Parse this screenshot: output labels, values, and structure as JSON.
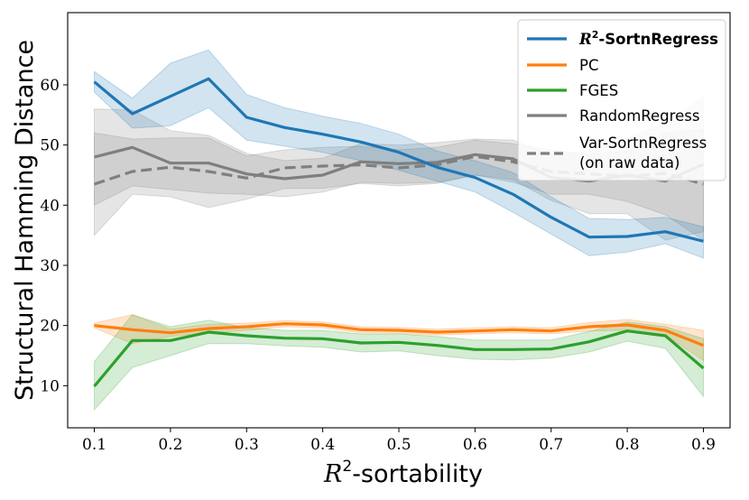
{
  "chart_data": {
    "type": "line",
    "xlabel_symbol": "R",
    "xlabel_sup": "2",
    "xlabel_suffix": "-sortability",
    "ylabel": "Structural Hamming Distance",
    "xlim": [
      0.065,
      0.935
    ],
    "ylim": [
      3,
      72
    ],
    "xticks": [
      "0.1",
      "0.2",
      "0.3",
      "0.4",
      "0.5",
      "0.6",
      "0.7",
      "0.8",
      "0.9"
    ],
    "yticks": [
      "10",
      "20",
      "30",
      "40",
      "50",
      "60"
    ],
    "x": [
      0.1,
      0.15,
      0.2,
      0.25,
      0.3,
      0.35,
      0.4,
      0.45,
      0.5,
      0.55,
      0.6,
      0.65,
      0.7,
      0.75,
      0.8,
      0.85,
      0.9
    ],
    "series": [
      {
        "name": "R2-SortnRegress",
        "legend_math": "R",
        "legend_sup": "2",
        "legend_suffix": "-SortnRegress",
        "bold": true,
        "color": "#1f77b4",
        "dash": "solid",
        "values": [
          60.5,
          55.2,
          58.1,
          61.0,
          54.6,
          52.9,
          51.8,
          50.5,
          48.8,
          46.3,
          44.6,
          41.8,
          38.0,
          34.7,
          34.8,
          35.6,
          34.0
        ],
        "lower": [
          58.8,
          52.8,
          53.2,
          56.2,
          50.8,
          49.8,
          48.8,
          47.4,
          45.8,
          44.0,
          42.2,
          38.8,
          35.2,
          31.6,
          32.2,
          33.6,
          31.2
        ],
        "upper": [
          62.2,
          57.8,
          63.6,
          65.8,
          58.4,
          56.2,
          54.8,
          53.6,
          51.8,
          49.0,
          47.4,
          45.4,
          41.4,
          37.8,
          37.6,
          38.0,
          36.4
        ]
      },
      {
        "name": "PC",
        "color": "#ff7f0e",
        "dash": "solid",
        "values": [
          20.0,
          19.3,
          18.8,
          19.5,
          19.8,
          20.3,
          20.1,
          19.3,
          19.2,
          18.9,
          19.1,
          19.3,
          19.1,
          19.8,
          20.1,
          19.2,
          16.7
        ],
        "lower": [
          19.6,
          17.0,
          18.2,
          18.8,
          19.2,
          19.8,
          19.6,
          18.8,
          18.7,
          18.4,
          18.6,
          18.8,
          18.6,
          19.1,
          19.2,
          18.4,
          14.2
        ],
        "upper": [
          20.4,
          21.8,
          19.4,
          20.2,
          20.4,
          20.8,
          20.6,
          19.8,
          19.7,
          19.4,
          19.6,
          19.8,
          19.6,
          20.5,
          21.0,
          20.2,
          19.2
        ]
      },
      {
        "name": "FGES",
        "color": "#2ca02c",
        "dash": "solid",
        "values": [
          9.9,
          17.5,
          17.5,
          18.9,
          18.3,
          17.9,
          17.8,
          17.1,
          17.2,
          16.7,
          16.0,
          16.0,
          16.1,
          17.3,
          19.1,
          18.3,
          12.9
        ],
        "lower": [
          6.0,
          13.0,
          15.0,
          17.0,
          17.0,
          16.6,
          16.4,
          15.6,
          15.8,
          15.0,
          14.4,
          14.3,
          14.6,
          15.6,
          17.4,
          16.2,
          8.2
        ],
        "upper": [
          14.0,
          21.8,
          19.8,
          20.9,
          19.6,
          19.2,
          19.2,
          18.6,
          18.6,
          18.2,
          17.6,
          17.6,
          17.6,
          19.0,
          20.6,
          19.8,
          17.8
        ]
      },
      {
        "name": "RandomRegress",
        "color": "#7f7f7f",
        "dash": "solid",
        "values": [
          48.0,
          49.6,
          47.0,
          47.0,
          45.2,
          44.4,
          45.0,
          47.2,
          46.9,
          47.1,
          48.4,
          47.7,
          44.6,
          44.0,
          45.0,
          44.0,
          46.8
        ],
        "lower": [
          40.0,
          43.2,
          42.6,
          42.0,
          41.8,
          41.4,
          42.2,
          43.8,
          43.6,
          43.8,
          45.0,
          44.2,
          40.8,
          38.6,
          38.6,
          34.2,
          35.6
        ],
        "upper": [
          56.0,
          55.8,
          52.4,
          51.6,
          48.6,
          47.4,
          47.8,
          50.2,
          50.0,
          50.4,
          51.0,
          50.8,
          48.4,
          49.0,
          51.2,
          53.6,
          58.0
        ]
      },
      {
        "name": "Var-SortnRegress",
        "legend_line1": "Var-SortnRegress",
        "legend_line2": "(on raw data)",
        "color": "#7f7f7f",
        "dash": "dashed",
        "values": [
          43.5,
          45.6,
          46.3,
          45.6,
          44.5,
          46.2,
          46.5,
          46.7,
          46.2,
          46.7,
          48.1,
          47.2,
          45.6,
          45.2,
          44.8,
          45.3,
          43.5
        ],
        "lower": [
          35.0,
          41.8,
          41.4,
          39.6,
          41.0,
          42.8,
          42.8,
          43.6,
          43.2,
          43.6,
          45.0,
          43.8,
          41.8,
          41.8,
          40.6,
          38.4,
          34.2
        ],
        "upper": [
          52.0,
          51.0,
          51.2,
          51.2,
          48.2,
          49.2,
          49.6,
          49.8,
          49.2,
          49.6,
          50.8,
          50.2,
          49.2,
          48.4,
          49.0,
          52.0,
          52.6
        ]
      }
    ],
    "legend_location": "top-right",
    "grid": false
  }
}
